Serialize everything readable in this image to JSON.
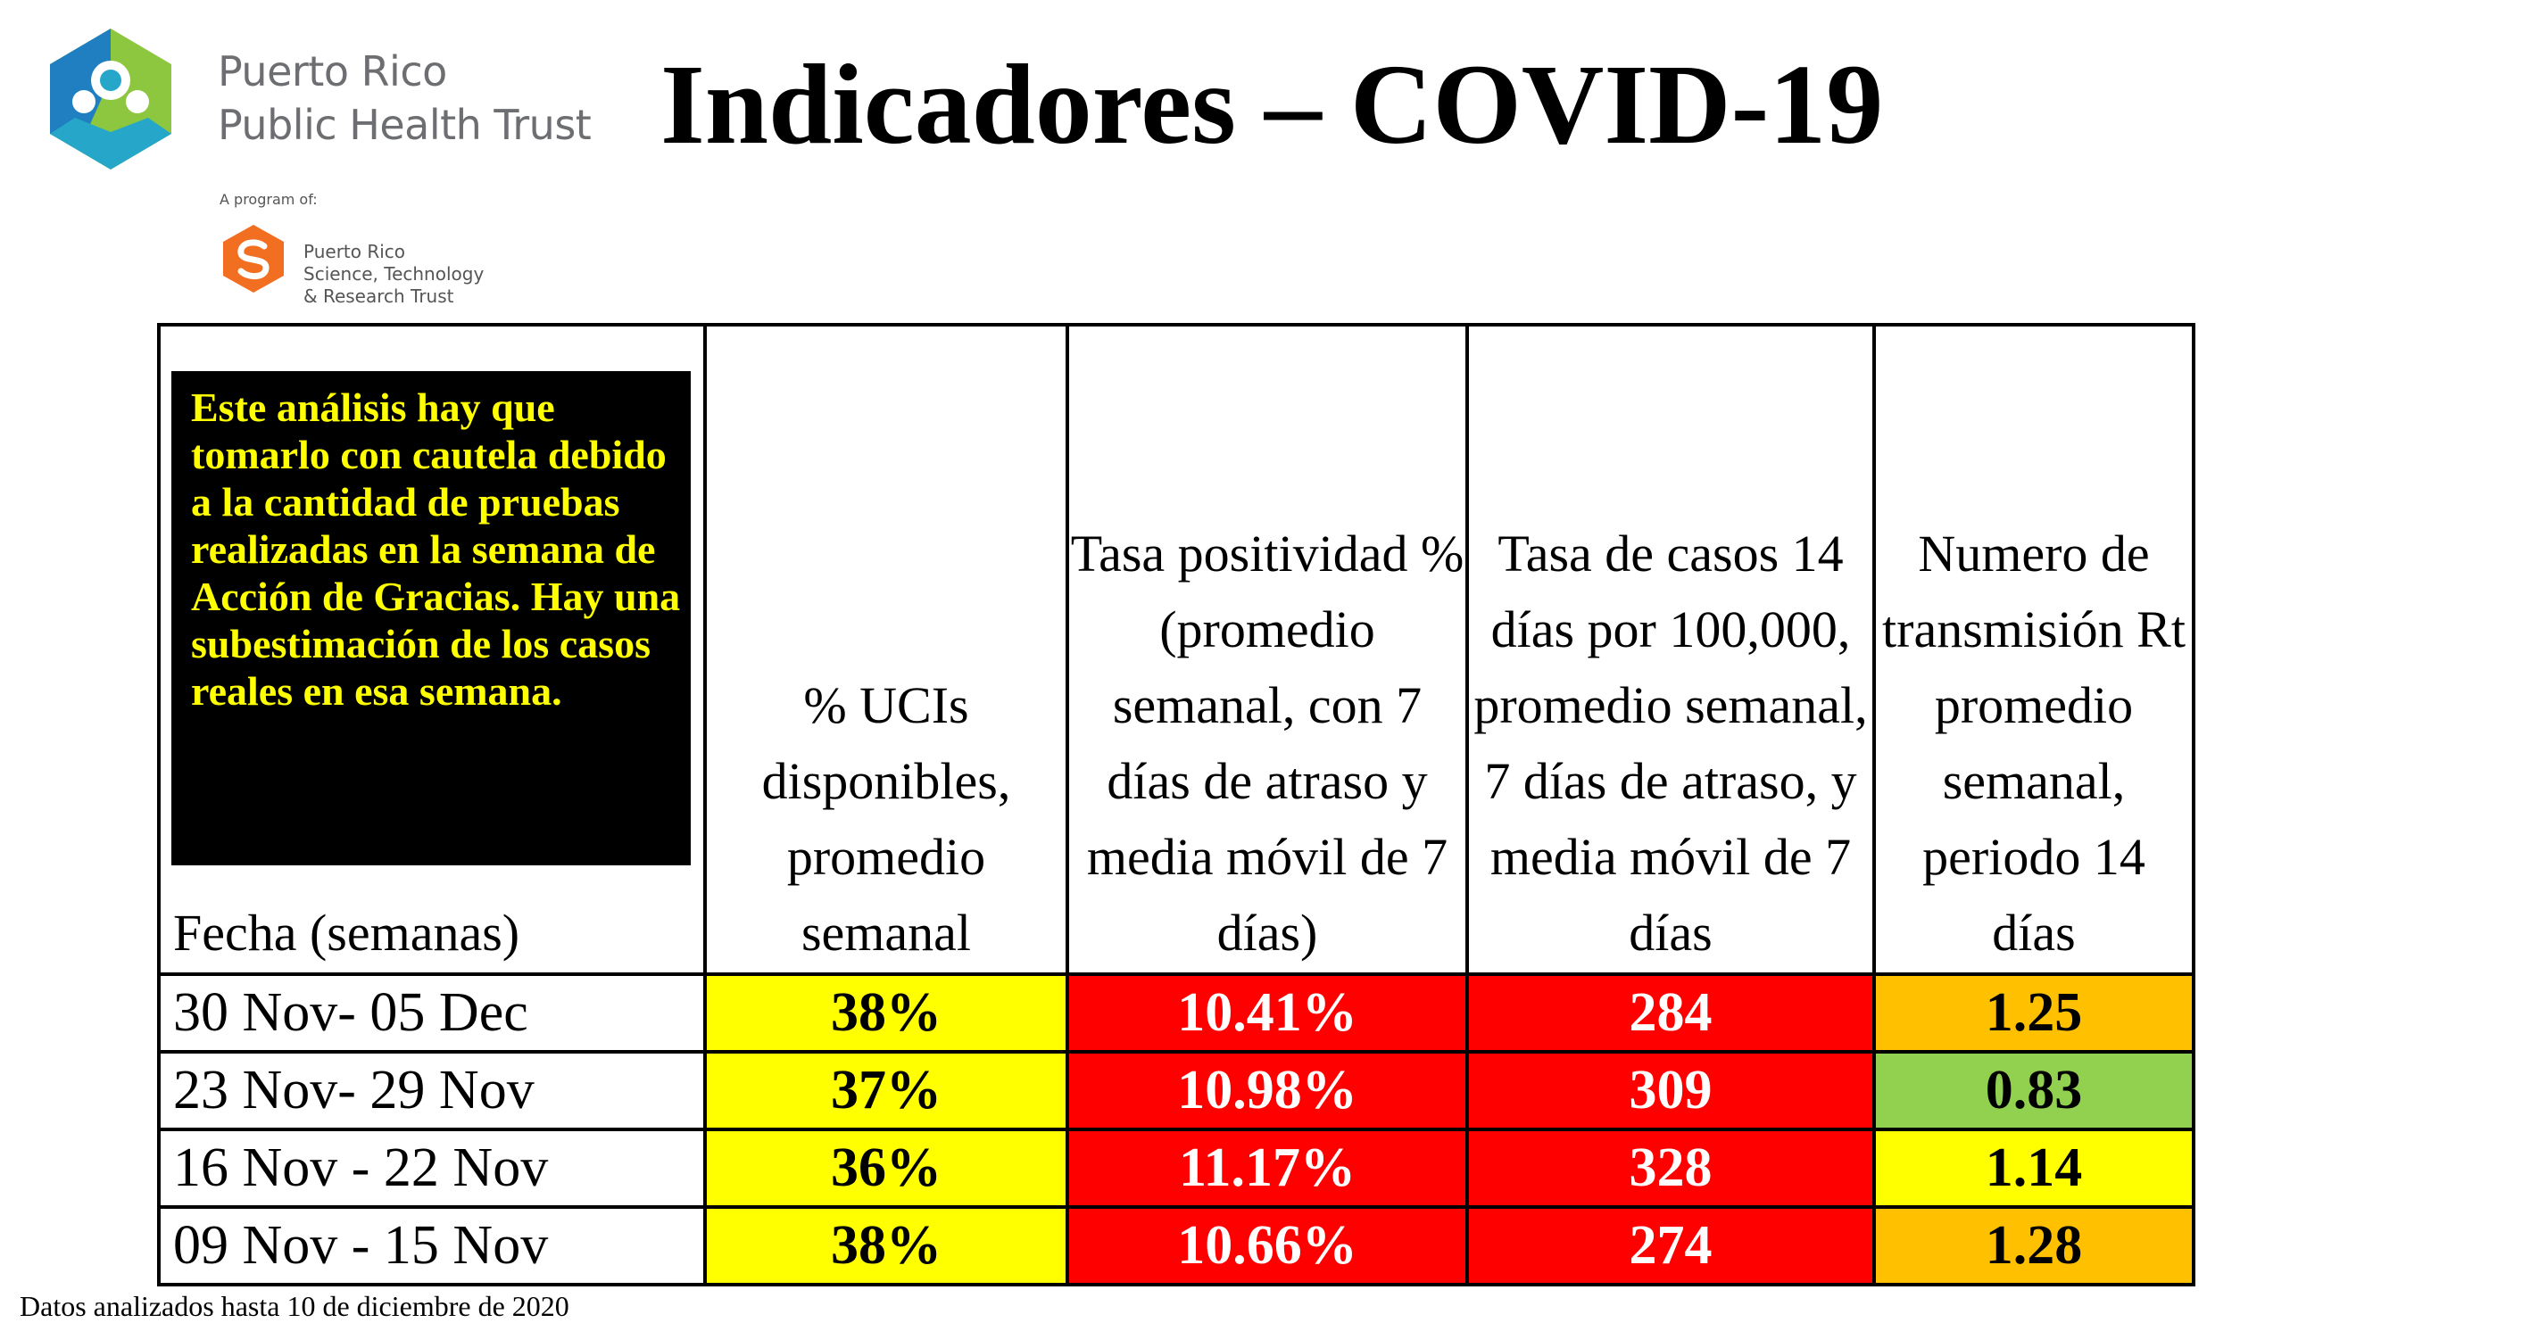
{
  "header": {
    "org_line1": "Puerto Rico",
    "org_line2": "Public Health Trust",
    "program_of": "A program of:",
    "sub_org_line1": "Puerto Rico",
    "sub_org_line2": "Science, Technology",
    "sub_org_line3": "& Research Trust",
    "title": "Indicadores – COVID-19",
    "logo_icon": "pr-public-health-trust-logo-icon",
    "sub_logo_icon": "prstrt-logo-icon",
    "colors": {
      "teal": "#26a7c9",
      "green": "#8dc63f",
      "orange": "#f26f21",
      "gray_text": "#6d6e71"
    }
  },
  "note": "Este análisis hay que tomarlo con cautela debido a la cantidad de pruebas realizadas en la semana de Acción de Gracias. Hay una subestimación de los casos reales en esa semana.",
  "table": {
    "headers": [
      "Fecha (semanas)",
      "% UCIs disponibles, promedio semanal",
      "Tasa positividad % (promedio semanal, con 7 días de atraso y media móvil de 7 días)",
      "Tasa de casos 14 días por 100,000, promedio semanal, 7 días de atraso, y media móvil de 7 días",
      "Numero de transmisión Rt promedio semanal, periodo 14 días"
    ],
    "rows": [
      {
        "date": "30 Nov- 05 Dec",
        "uci": "38%",
        "positividad": "10.41%",
        "casos": "284",
        "rt": "1.25",
        "rt_color": "orange"
      },
      {
        "date": "23 Nov- 29 Nov",
        "uci": "37%",
        "positividad": "10.98%",
        "casos": "309",
        "rt": "0.83",
        "rt_color": "green"
      },
      {
        "date": "16 Nov - 22 Nov",
        "uci": "36%",
        "positividad": "11.17%",
        "casos": "328",
        "rt": "1.14",
        "rt_color": "yellow"
      },
      {
        "date": "09 Nov - 15 Nov",
        "uci": "38%",
        "positividad": "10.66%",
        "casos": "274",
        "rt": "1.28",
        "rt_color": "orange"
      }
    ],
    "cell_colors": {
      "yellow": "#ffff00",
      "red": "#ff0000",
      "orange": "#ffc000",
      "green": "#92d050"
    }
  },
  "footer": "Datos analizados hasta 10 de diciembre de 2020"
}
